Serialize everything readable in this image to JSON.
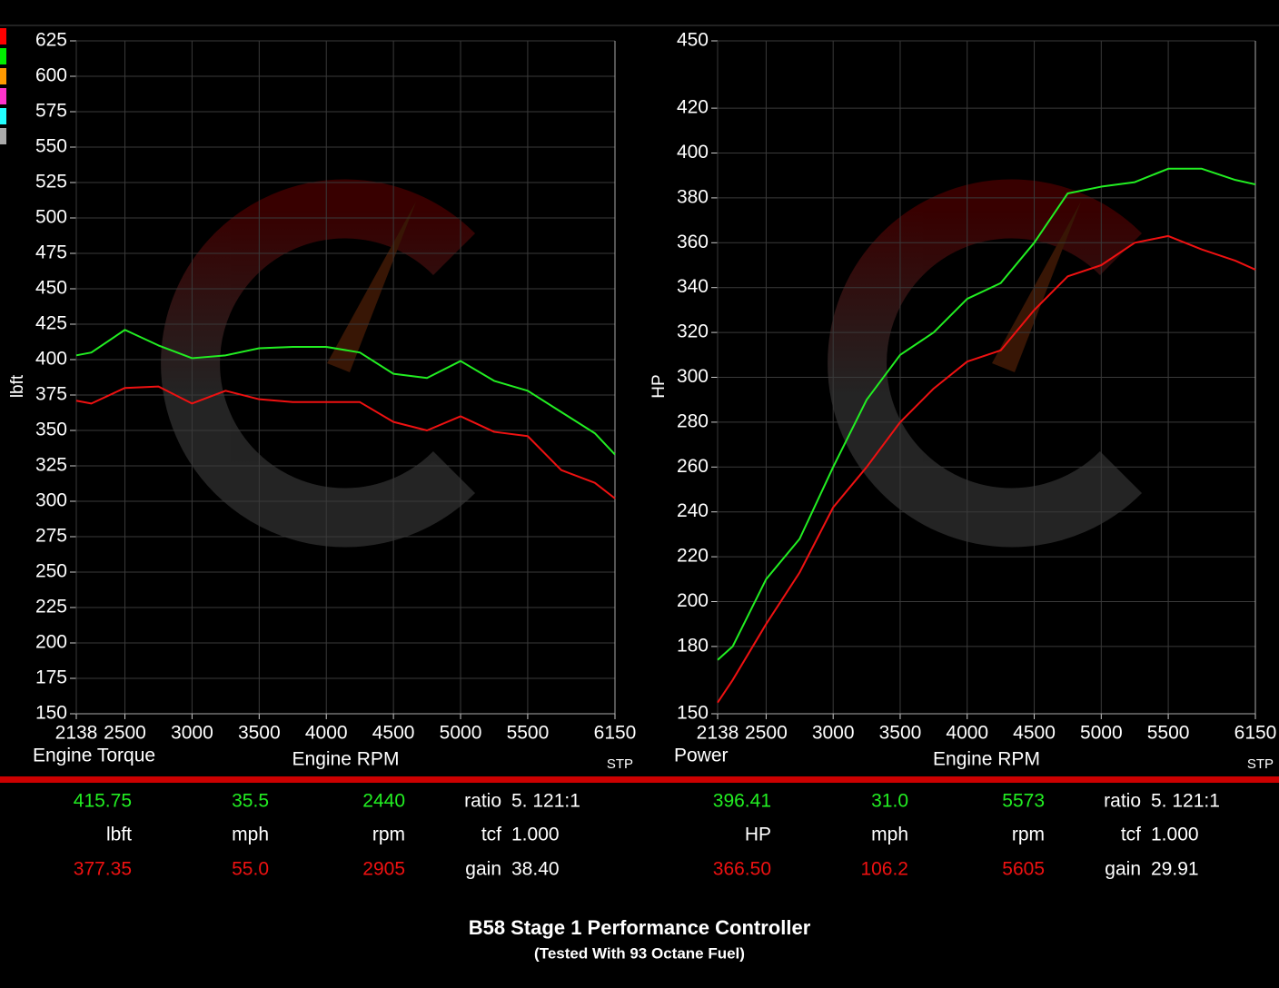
{
  "chart_data": [
    {
      "type": "line",
      "title": "Engine Torque",
      "x_label": "Engine RPM",
      "y_label": "lbft",
      "corner_note": "STP",
      "x": [
        2138,
        2250,
        2500,
        2750,
        3000,
        3250,
        3500,
        3750,
        4000,
        4250,
        4500,
        4750,
        5000,
        5250,
        5500,
        5750,
        6000,
        6150
      ],
      "series": [
        {
          "color": "#22ee22",
          "values": [
            403,
            405,
            421,
            410,
            401,
            403,
            408,
            409,
            409,
            405,
            390,
            387,
            399,
            385,
            378,
            363,
            348,
            333
          ]
        },
        {
          "color": "#ee1111",
          "values": [
            371,
            369,
            380,
            381,
            369,
            378,
            372,
            370,
            370,
            370,
            356,
            350,
            360,
            349,
            346,
            322,
            313,
            302
          ]
        }
      ],
      "xlim": [
        2138,
        6150
      ],
      "xticks": [
        2138,
        2500,
        3000,
        3500,
        4000,
        4500,
        5000,
        5500,
        6150
      ],
      "ylim": [
        150,
        625
      ],
      "yticks": [
        150,
        175,
        200,
        225,
        250,
        275,
        300,
        325,
        350,
        375,
        400,
        425,
        450,
        475,
        500,
        525,
        550,
        575,
        600,
        625
      ],
      "grid": true
    },
    {
      "type": "line",
      "title": "Power",
      "x_label": "Engine RPM",
      "y_label": "HP",
      "corner_note": "STP",
      "x": [
        2138,
        2250,
        2500,
        2750,
        3000,
        3250,
        3500,
        3750,
        4000,
        4250,
        4500,
        4750,
        5000,
        5250,
        5500,
        5750,
        6000,
        6150
      ],
      "series": [
        {
          "color": "#22ee22",
          "values": [
            174,
            180,
            210,
            228,
            260,
            290,
            310,
            320,
            335,
            342,
            360,
            382,
            385,
            387,
            393,
            393,
            388,
            386
          ]
        },
        {
          "color": "#ee1111",
          "values": [
            155,
            165,
            190,
            213,
            242,
            260,
            280,
            295,
            307,
            312,
            330,
            345,
            350,
            360,
            363,
            357,
            352,
            348
          ]
        }
      ],
      "xlim": [
        2138,
        6150
      ],
      "xticks": [
        2138,
        2500,
        3000,
        3500,
        4000,
        4500,
        5000,
        5500,
        6150
      ],
      "ylim": [
        150,
        450
      ],
      "yticks": [
        150,
        180,
        200,
        220,
        240,
        260,
        280,
        300,
        320,
        340,
        360,
        380,
        400,
        420,
        450
      ],
      "grid": true
    }
  ],
  "swatch_colors": [
    "#ff0000",
    "#00ee00",
    "#ff9900",
    "#ff33cc",
    "#22ffff",
    "#aaaaaa"
  ],
  "readouts": [
    [
      [
        "415.75",
        "35.5",
        "2440",
        "ratio",
        "5. 121:1"
      ],
      [
        "lbft",
        "mph",
        "rpm",
        "tcf",
        "1.000"
      ],
      [
        "377.35",
        "55.0",
        "2905",
        "gain",
        "38.40"
      ]
    ],
    [
      [
        "396.41",
        "31.0",
        "5573",
        "ratio",
        "5. 121:1"
      ],
      [
        "HP",
        "mph",
        "rpm",
        "tcf",
        "1.000"
      ],
      [
        "366.50",
        "106.2",
        "5605",
        "gain",
        "29.91"
      ]
    ]
  ],
  "footer": {
    "title": "B58 Stage 1 Performance Controller",
    "subtitle": "(Tested With 93 Octane Fuel)"
  }
}
